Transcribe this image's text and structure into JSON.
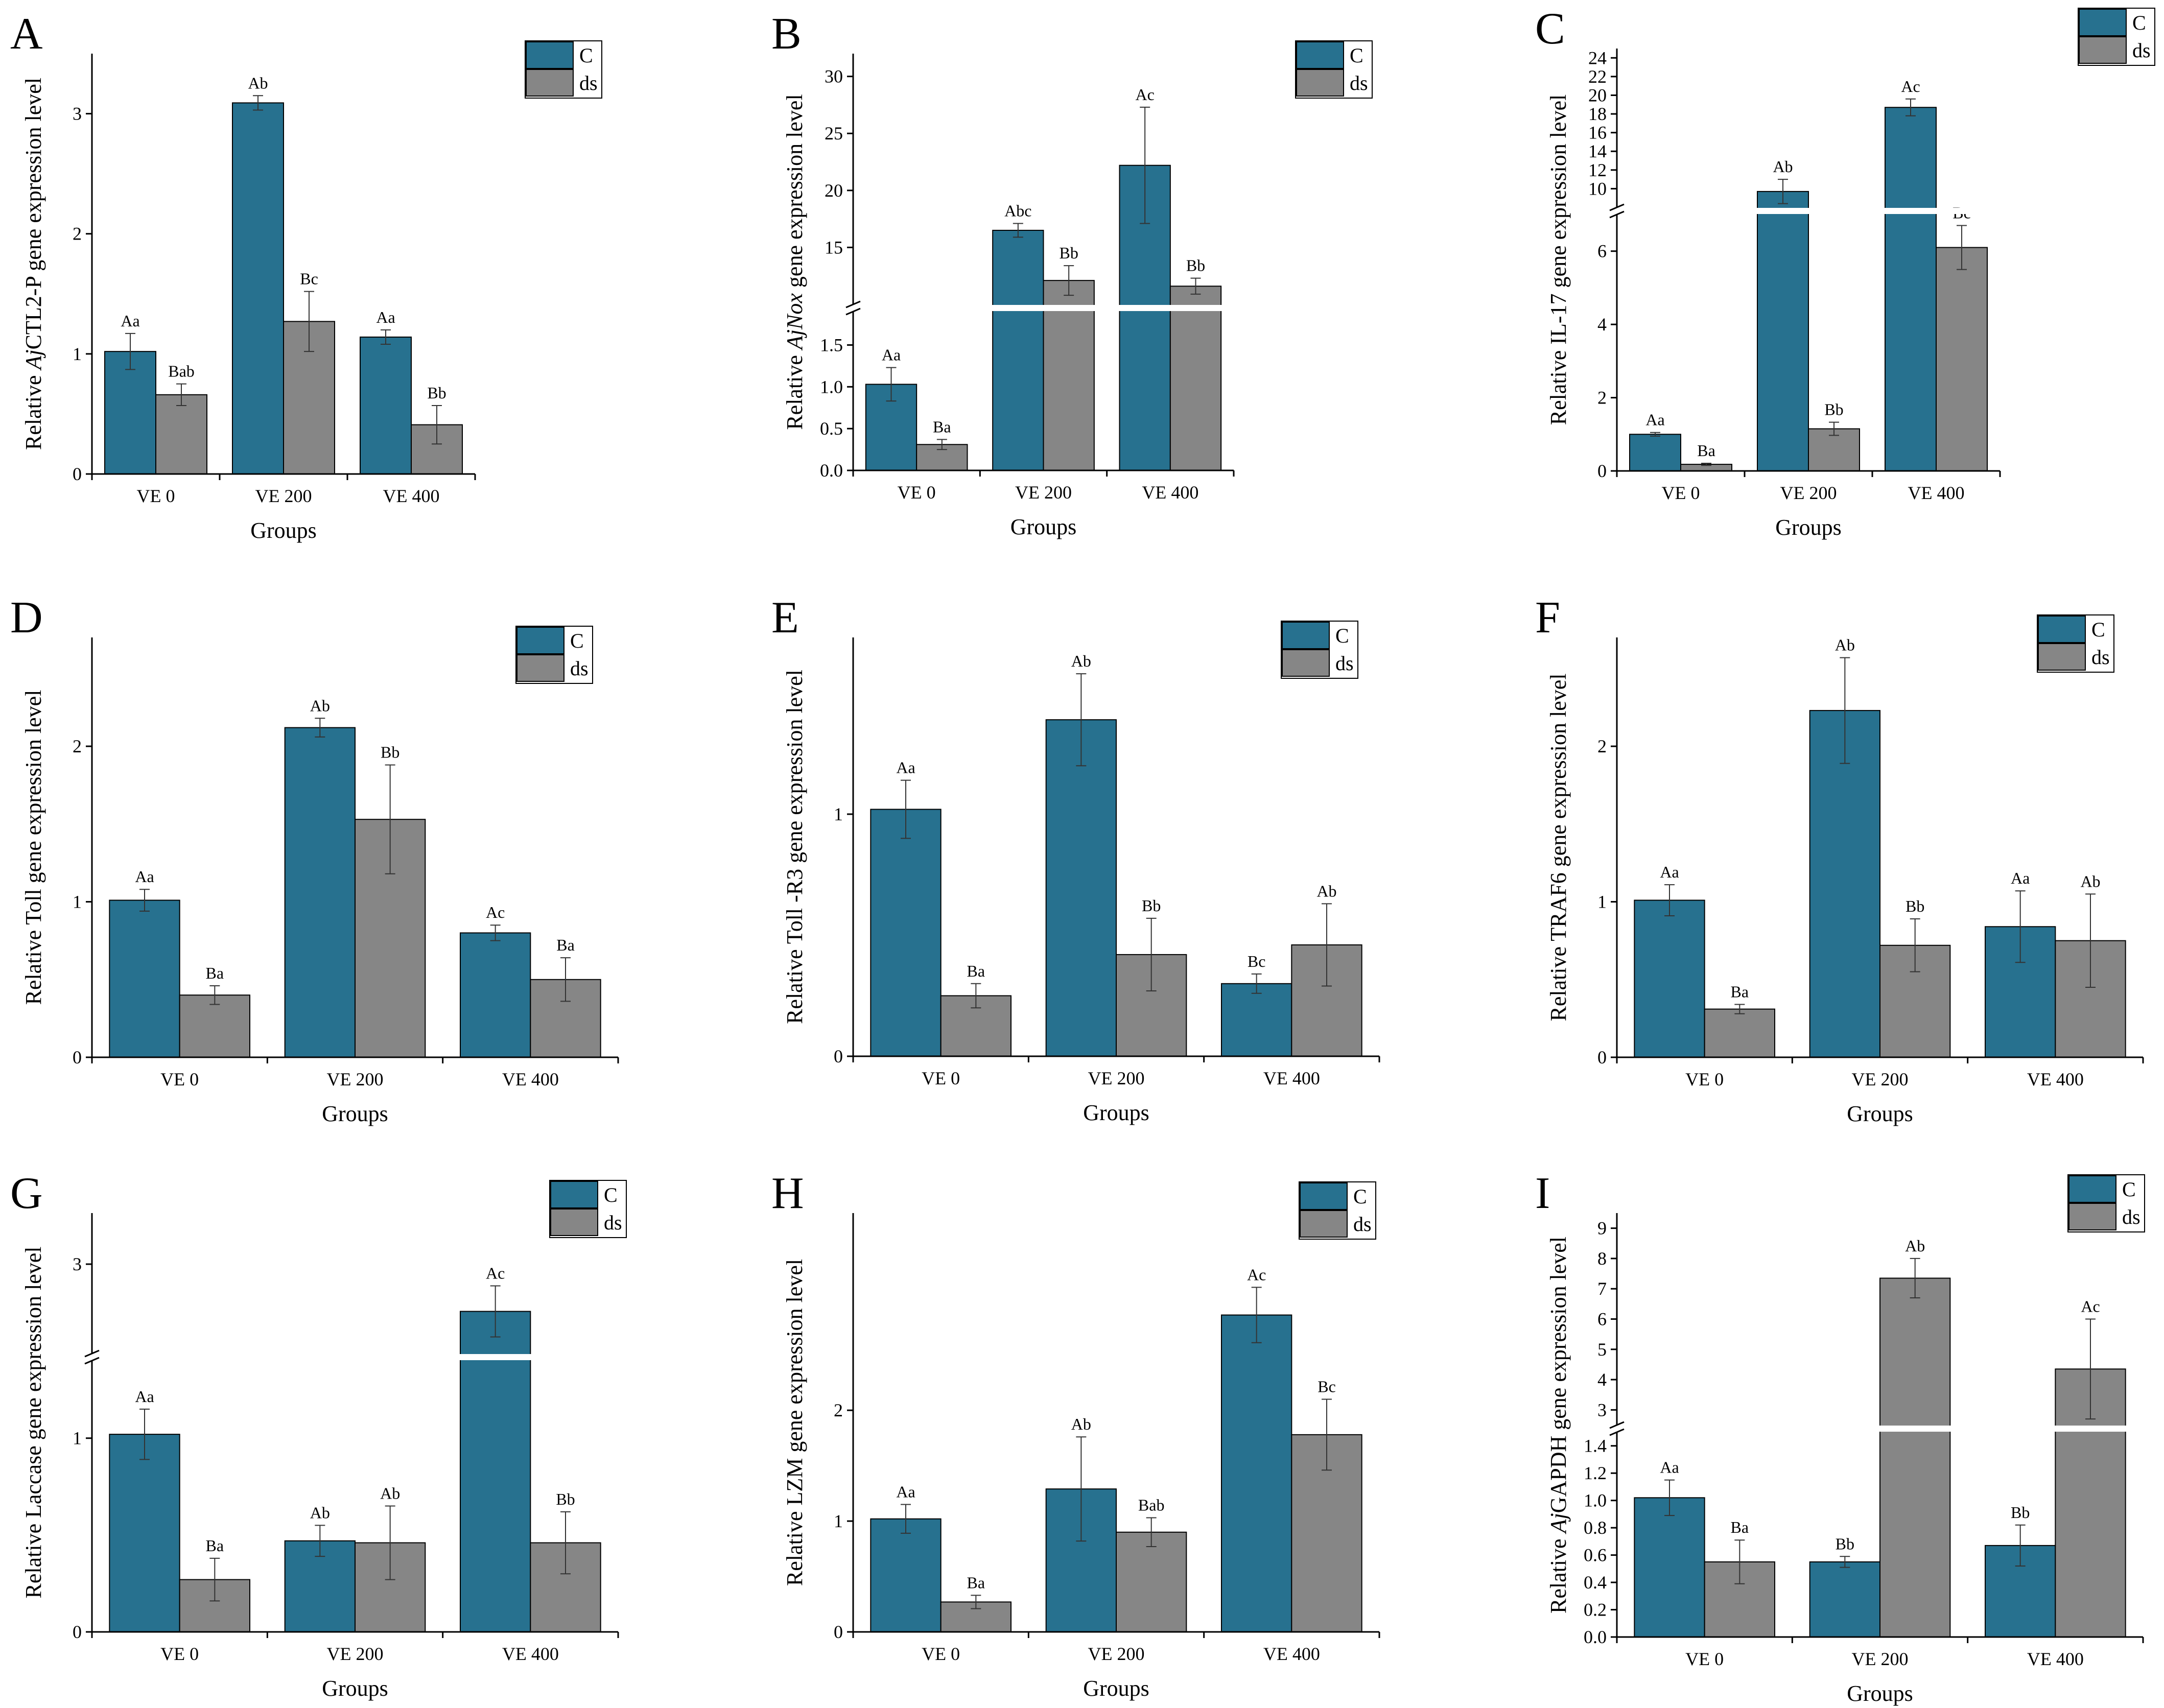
{
  "figure": {
    "colors": {
      "C": "#27718f",
      "ds": "#868686",
      "axis": "#000000",
      "break": "#ffffff"
    },
    "legend_labels": [
      "C",
      "ds"
    ]
  },
  "chart_data": [
    {
      "id": "A",
      "panel_label": "A",
      "type": "bar",
      "ylabel_prefix": "Relative ",
      "ylabel_italic": "Aj",
      "ylabel_suffix": "CTL2-P gene expression level",
      "xlabel": "Groups",
      "categories": [
        "VE 0",
        "VE 200",
        "VE 400"
      ],
      "series": [
        {
          "name": "C",
          "values": [
            1.02,
            3.09,
            1.14
          ],
          "errors": [
            0.15,
            0.06,
            0.06
          ],
          "labels": [
            "Aa",
            "Ab",
            "Aa"
          ]
        },
        {
          "name": "ds",
          "values": [
            0.66,
            1.27,
            0.41
          ],
          "errors": [
            0.09,
            0.25,
            0.16
          ],
          "labels": [
            "Bab",
            "Bc",
            "Bb"
          ]
        }
      ],
      "ylim": [
        0,
        3.5
      ],
      "ticks": [
        {
          "v": 0,
          "label": "0"
        },
        {
          "v": 1,
          "label": "1"
        },
        {
          "v": 2,
          "label": "2"
        },
        {
          "v": 3,
          "label": "3"
        }
      ],
      "breaks": []
    },
    {
      "id": "B",
      "panel_label": "B",
      "type": "bar",
      "ylabel_prefix": "Relative ",
      "ylabel_italic": "AjNox",
      "ylabel_suffix": " gene expression level",
      "xlabel": "Groups",
      "categories": [
        "VE 0",
        "VE 200",
        "VE 400"
      ],
      "series": [
        {
          "name": "C",
          "values": [
            1.03,
            16.5,
            22.2
          ],
          "errors": [
            0.2,
            0.6,
            5.1
          ],
          "labels": [
            "Aa",
            "Abc",
            "Ac"
          ]
        },
        {
          "name": "ds",
          "values": [
            0.31,
            12.1,
            11.6
          ],
          "errors": [
            0.06,
            1.3,
            0.7
          ],
          "labels": [
            "Ba",
            "Bb",
            "Bb"
          ]
        }
      ],
      "ylim": [
        0,
        32
      ],
      "ticks": [
        {
          "v": 0,
          "label": "0.0"
        },
        {
          "v": 0.5,
          "label": "0.5"
        },
        {
          "v": 1,
          "label": "1.0"
        },
        {
          "v": 1.5,
          "label": "1.5"
        },
        {
          "v": 15,
          "label": "15"
        },
        {
          "v": 20,
          "label": "20"
        },
        {
          "v": 25,
          "label": "25"
        },
        {
          "v": 30,
          "label": "30"
        }
      ],
      "breaks": [
        {
          "value": 1.9,
          "to": 10
        }
      ]
    },
    {
      "id": "C",
      "panel_label": "C",
      "type": "bar",
      "ylabel_prefix": "Relative IL-17 gene expression level",
      "ylabel_italic": "",
      "ylabel_suffix": "",
      "xlabel": "Groups",
      "categories": [
        "VE 0",
        "VE 200",
        "VE 400"
      ],
      "series": [
        {
          "name": "C",
          "values": [
            1.0,
            9.7,
            18.7
          ],
          "errors": [
            0.05,
            1.3,
            0.9
          ],
          "labels": [
            "Aa",
            "Ab",
            "Ac"
          ]
        },
        {
          "name": "ds",
          "values": [
            0.18,
            1.15,
            6.1
          ],
          "errors": [
            0.03,
            0.18,
            0.6
          ],
          "labels": [
            "Ba",
            "Bb",
            "Bc"
          ]
        }
      ],
      "ylim": [
        0,
        25
      ],
      "ticks": [
        {
          "v": 0,
          "label": "0"
        },
        {
          "v": 2,
          "label": "2"
        },
        {
          "v": 4,
          "label": "4"
        },
        {
          "v": 6,
          "label": "6"
        },
        {
          "v": 10,
          "label": "10"
        },
        {
          "v": 12,
          "label": "12"
        },
        {
          "v": 14,
          "label": "14"
        },
        {
          "v": 16,
          "label": "16"
        },
        {
          "v": 18,
          "label": "18"
        },
        {
          "v": 20,
          "label": "20"
        },
        {
          "v": 22,
          "label": "22"
        },
        {
          "v": 24,
          "label": "24"
        }
      ],
      "breaks": [
        {
          "value": 7,
          "to": 8
        }
      ]
    },
    {
      "id": "D",
      "panel_label": "D",
      "type": "bar",
      "ylabel_prefix": "Relative Toll gene expression level",
      "ylabel_italic": "",
      "ylabel_suffix": "",
      "xlabel": "Groups",
      "categories": [
        "VE 0",
        "VE 200",
        "VE 400"
      ],
      "series": [
        {
          "name": "C",
          "values": [
            1.01,
            2.12,
            0.8
          ],
          "errors": [
            0.07,
            0.06,
            0.05
          ],
          "labels": [
            "Aa",
            "Ab",
            "Ac"
          ]
        },
        {
          "name": "ds",
          "values": [
            0.4,
            1.53,
            0.5
          ],
          "errors": [
            0.06,
            0.35,
            0.14
          ],
          "labels": [
            "Ba",
            "Bb",
            "Ba"
          ]
        }
      ],
      "ylim": [
        0,
        2.7
      ],
      "ticks": [
        {
          "v": 0,
          "label": "0"
        },
        {
          "v": 1,
          "label": "1"
        },
        {
          "v": 2,
          "label": "2"
        }
      ],
      "breaks": []
    },
    {
      "id": "E",
      "panel_label": "E",
      "type": "bar",
      "ylabel_prefix": "Relative Toll -R3 gene expression level",
      "ylabel_italic": "",
      "ylabel_suffix": "",
      "xlabel": "Groups",
      "categories": [
        "VE 0",
        "VE 200",
        "VE 400"
      ],
      "series": [
        {
          "name": "C",
          "values": [
            1.02,
            1.39,
            0.3
          ],
          "errors": [
            0.12,
            0.19,
            0.04
          ],
          "labels": [
            "Aa",
            "Ab",
            "Bc"
          ]
        },
        {
          "name": "ds",
          "values": [
            0.25,
            0.42,
            0.46
          ],
          "errors": [
            0.05,
            0.15,
            0.17
          ],
          "labels": [
            "Ba",
            "Bb",
            "Ab"
          ]
        }
      ],
      "ylim": [
        0,
        1.73
      ],
      "ticks": [
        {
          "v": 0,
          "label": "0"
        },
        {
          "v": 1,
          "label": "1"
        }
      ],
      "breaks": []
    },
    {
      "id": "F",
      "panel_label": "F",
      "type": "bar",
      "ylabel_prefix": "Relative TRAF6 gene expression level",
      "ylabel_italic": "",
      "ylabel_suffix": "",
      "xlabel": "Groups",
      "categories": [
        "VE 0",
        "VE 200",
        "VE 400"
      ],
      "series": [
        {
          "name": "C",
          "values": [
            1.01,
            2.23,
            0.84
          ],
          "errors": [
            0.1,
            0.34,
            0.23
          ],
          "labels": [
            "Aa",
            "Ab",
            "Aa"
          ]
        },
        {
          "name": "ds",
          "values": [
            0.31,
            0.72,
            0.75
          ],
          "errors": [
            0.03,
            0.17,
            0.3
          ],
          "labels": [
            "Ba",
            "Bb",
            "Ab"
          ]
        }
      ],
      "ylim": [
        0,
        2.7
      ],
      "ticks": [
        {
          "v": 0,
          "label": "0"
        },
        {
          "v": 1,
          "label": "1"
        },
        {
          "v": 2,
          "label": "2"
        }
      ],
      "breaks": []
    },
    {
      "id": "G",
      "panel_label": "G",
      "type": "bar",
      "ylabel_prefix": "Relative Laccase gene expression level",
      "ylabel_italic": "",
      "ylabel_suffix": "",
      "xlabel": "Groups",
      "categories": [
        "VE 0",
        "VE 200",
        "VE 400"
      ],
      "series": [
        {
          "name": "C",
          "values": [
            1.02,
            0.47,
            2.63
          ],
          "errors": [
            0.13,
            0.08,
            0.2
          ],
          "labels": [
            "Aa",
            "Ab",
            "Ac"
          ]
        },
        {
          "name": "ds",
          "values": [
            0.27,
            0.46,
            0.46
          ],
          "errors": [
            0.11,
            0.19,
            0.16
          ],
          "labels": [
            "Ba",
            "Ab",
            "Bb"
          ]
        }
      ],
      "ylim": [
        0,
        3.4
      ],
      "ticks": [
        {
          "v": 0,
          "label": "0"
        },
        {
          "v": 1,
          "label": "1"
        },
        {
          "v": 3,
          "label": "3"
        }
      ],
      "breaks": [
        {
          "value": 1.4,
          "to": 2.3
        }
      ]
    },
    {
      "id": "H",
      "panel_label": "H",
      "type": "bar",
      "ylabel_prefix": "Relative LZM gene expression level",
      "ylabel_italic": "",
      "ylabel_suffix": "",
      "xlabel": "Groups",
      "categories": [
        "VE 0",
        "VE 200",
        "VE 400"
      ],
      "series": [
        {
          "name": "C",
          "values": [
            1.02,
            1.29,
            2.86
          ],
          "errors": [
            0.13,
            0.47,
            0.25
          ],
          "labels": [
            "Aa",
            "Ab",
            "Ac"
          ]
        },
        {
          "name": "ds",
          "values": [
            0.27,
            0.9,
            1.78
          ],
          "errors": [
            0.06,
            0.13,
            0.32
          ],
          "labels": [
            "Ba",
            "Bab",
            "Bc"
          ]
        }
      ],
      "ylim": [
        0,
        3.78
      ],
      "ticks": [
        {
          "v": 0,
          "label": "0"
        },
        {
          "v": 1,
          "label": "1"
        },
        {
          "v": 2,
          "label": "2"
        }
      ],
      "breaks": []
    },
    {
      "id": "I",
      "panel_label": "I",
      "type": "bar",
      "ylabel_prefix": "Relative ",
      "ylabel_italic": "Aj",
      "ylabel_suffix": "GAPDH gene expression level",
      "xlabel": "Groups",
      "categories": [
        "VE 0",
        "VE 200",
        "VE 400"
      ],
      "series": [
        {
          "name": "C",
          "values": [
            1.02,
            0.55,
            0.67
          ],
          "errors": [
            0.13,
            0.04,
            0.15
          ],
          "labels": [
            "Aa",
            "Bb",
            "Bb"
          ]
        },
        {
          "name": "ds",
          "values": [
            0.55,
            7.35,
            4.35
          ],
          "errors": [
            0.16,
            0.65,
            1.65
          ],
          "labels": [
            "Ba",
            "Ab",
            "Ac"
          ]
        }
      ],
      "ylim": [
        0,
        9.5
      ],
      "ticks": [
        {
          "v": 0,
          "label": "0.0"
        },
        {
          "v": 0.2,
          "label": "0.2"
        },
        {
          "v": 0.4,
          "label": "0.4"
        },
        {
          "v": 0.6,
          "label": "0.6"
        },
        {
          "v": 0.8,
          "label": "0.8"
        },
        {
          "v": 1.0,
          "label": "1.0"
        },
        {
          "v": 1.2,
          "label": "1.2"
        },
        {
          "v": 1.4,
          "label": "1.4"
        },
        {
          "v": 3,
          "label": "3"
        },
        {
          "v": 4,
          "label": "4"
        },
        {
          "v": 5,
          "label": "5"
        },
        {
          "v": 6,
          "label": "6"
        },
        {
          "v": 7,
          "label": "7"
        },
        {
          "v": 8,
          "label": "8"
        },
        {
          "v": 9,
          "label": "9"
        }
      ],
      "breaks": [
        {
          "value": 1.5,
          "to": 2.5
        }
      ]
    }
  ]
}
